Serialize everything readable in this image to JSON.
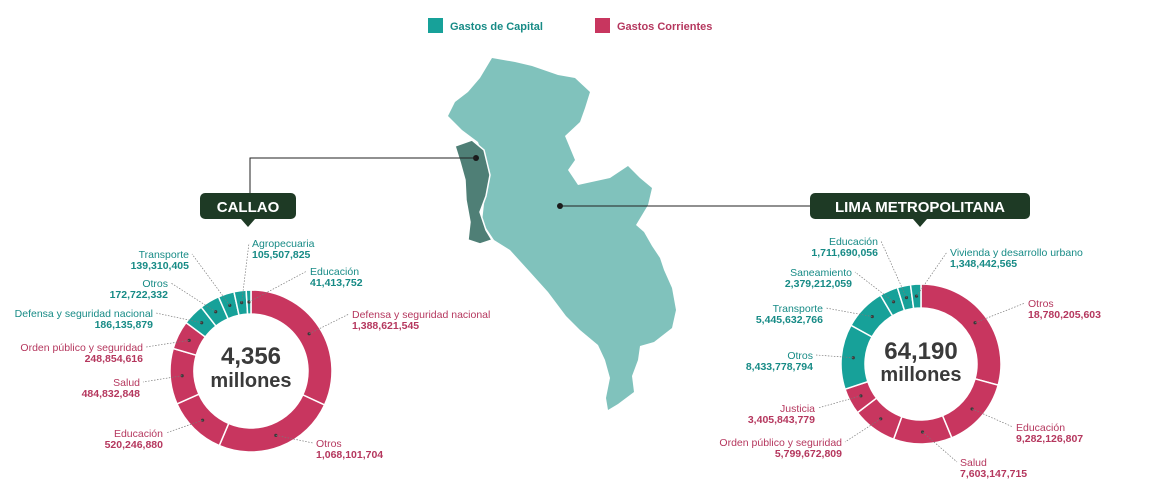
{
  "colors": {
    "capital": "#17a199",
    "corriente": "#c8365f",
    "capital_text": "#178b86",
    "corriente_text": "#b5375e",
    "map_main": "#80c2bc",
    "map_callao": "#4f7f76",
    "tag_bg": "#1e3a25",
    "center_text": "#3a3a3a"
  },
  "legend": [
    {
      "label": "Gastos de Capital",
      "kind": "capital"
    },
    {
      "label": "Gastos Corrientes",
      "kind": "corriente"
    }
  ],
  "chart_data": [
    {
      "type": "pie",
      "title": "CALLAO",
      "center_value": "4,356",
      "center_unit": "millones",
      "slices": [
        {
          "label": "Defensa y seguridad nacional",
          "value": "1,388,621,545",
          "kind": "corriente"
        },
        {
          "label": "Otros",
          "value": "1,068,101,704",
          "kind": "corriente"
        },
        {
          "label": "Educación",
          "value": "520,246,880",
          "kind": "corriente"
        },
        {
          "label": "Salud",
          "value": "484,832,848",
          "kind": "corriente"
        },
        {
          "label": "Orden público y seguridad",
          "value": "248,854,616",
          "kind": "corriente"
        },
        {
          "label": "Defensa y seguridad nacional",
          "value": "186,135,879",
          "kind": "capital"
        },
        {
          "label": "Otros",
          "value": "172,722,332",
          "kind": "capital"
        },
        {
          "label": "Transporte",
          "value": "139,310,405",
          "kind": "capital"
        },
        {
          "label": "Agropecuaria",
          "value": "105,507,825",
          "kind": "capital"
        },
        {
          "label": "Educación",
          "value": "41,413,752",
          "kind": "capital"
        }
      ]
    },
    {
      "type": "pie",
      "title": "LIMA METROPOLITANA",
      "center_value": "64,190",
      "center_unit": "millones",
      "slices": [
        {
          "label": "Otros",
          "value": "18,780,205,603",
          "kind": "corriente"
        },
        {
          "label": "Educación",
          "value": "9,282,126,807",
          "kind": "corriente"
        },
        {
          "label": "Salud",
          "value": "7,603,147,715",
          "kind": "corriente"
        },
        {
          "label": "Orden público y seguridad",
          "value": "5,799,672,809",
          "kind": "corriente"
        },
        {
          "label": "Justicia",
          "value": "3,405,843,779",
          "kind": "corriente"
        },
        {
          "label": "Otros",
          "value": "8,433,778,794",
          "kind": "capital"
        },
        {
          "label": "Transporte",
          "value": "5,445,632,766",
          "kind": "capital"
        },
        {
          "label": "Saneamiento",
          "value": "2,379,212,059",
          "kind": "capital"
        },
        {
          "label": "Educación",
          "value": "1,711,690,056",
          "kind": "capital"
        },
        {
          "label": "Vivienda y desarrollo urbano",
          "value": "1,348,442,565",
          "kind": "capital"
        }
      ]
    }
  ]
}
